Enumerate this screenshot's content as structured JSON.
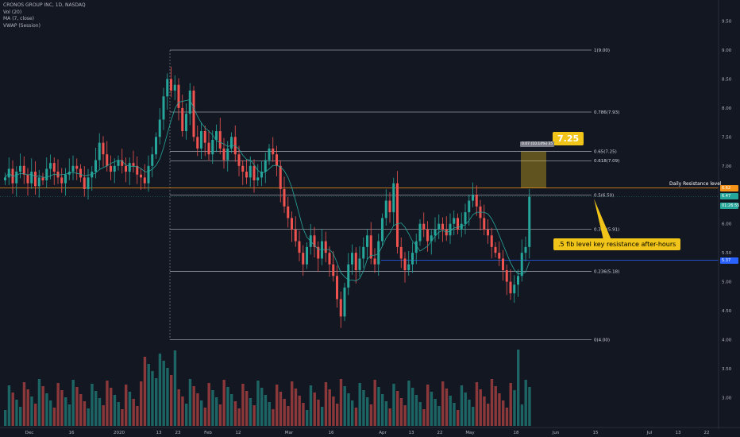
{
  "legend": {
    "symbol": "CRONOS GROUP INC, 1D, NASDAQ",
    "vol": "Vol (20)",
    "ma": "MA (7, close)",
    "vwap": "VWAP (Session)"
  },
  "price_axis": {
    "labels": [
      "9.50",
      "9.00",
      "8.50",
      "8.00",
      "7.50",
      "7.00",
      "6.50",
      "6.00",
      "5.50",
      "5.00",
      "4.50",
      "4.00",
      "3.50",
      "3.00"
    ],
    "values": [
      9.5,
      9.0,
      8.5,
      8.0,
      7.5,
      7.0,
      6.5,
      6.0,
      5.5,
      5.0,
      4.5,
      4.0,
      3.5,
      3.0
    ]
  },
  "time_axis": {
    "labels": [
      "Dec",
      "16",
      "2020",
      "13",
      "23",
      "Feb",
      "12",
      "Mar",
      "16",
      "Apr",
      "13",
      "22",
      "May",
      "18",
      "Jun",
      "15",
      "Jul",
      "13",
      "22"
    ]
  },
  "fib_levels": [
    {
      "label": "1(9.00)",
      "value": 9.0
    },
    {
      "label": "0.786(7.93)",
      "value": 7.93
    },
    {
      "label": "0.65(7.25)",
      "value": 7.25
    },
    {
      "label": "0.618(7.09)",
      "value": 7.09
    },
    {
      "label": "0.5(6.50)",
      "value": 6.5
    },
    {
      "label": "0.382(5.91)",
      "value": 5.91
    },
    {
      "label": "0.236(5.18)",
      "value": 5.18
    },
    {
      "label": "0(4.00)",
      "value": 4.0
    }
  ],
  "resistance": {
    "label": "Daily Resistance level",
    "value": 6.62
  },
  "price_tags": [
    {
      "text": "6.62",
      "value": 6.62,
      "color": "#f7931a"
    },
    {
      "text": "6.47",
      "value": 6.47,
      "color": "#26a69a"
    },
    {
      "text": "01:26:55",
      "value": 6.31,
      "color": "#26a69a"
    },
    {
      "text": "5.37",
      "value": 5.37,
      "color": "#2962ff"
    }
  ],
  "support_line": {
    "value": 5.37
  },
  "annotations": {
    "target_big": "7.25",
    "target_small": "0.07 (10.14%) 35",
    "callout": ".5 fib level key resistance after-hours"
  },
  "colors": {
    "up": "#26a69a",
    "down": "#ef5350",
    "ma": "#26a69a",
    "fib": "#d1d4dc",
    "resistance": "#f7931a",
    "callout": "#f0c419"
  },
  "chart_data": {
    "type": "candlestick",
    "closes": [
      6.8,
      6.95,
      6.7,
      6.9,
      7.0,
      6.85,
      6.7,
      6.9,
      6.65,
      6.8,
      6.75,
      6.95,
      7.05,
      6.9,
      6.8,
      6.7,
      6.85,
      6.9,
      7.0,
      6.95,
      6.8,
      6.6,
      6.8,
      6.9,
      7.1,
      7.4,
      7.2,
      7.0,
      6.9,
      7.0,
      7.1,
      7.0,
      6.9,
      7.05,
      7.0,
      6.85,
      6.8,
      6.7,
      7.0,
      7.2,
      7.5,
      7.8,
      8.2,
      8.5,
      8.3,
      8.4,
      8.0,
      7.6,
      7.9,
      8.3,
      7.5,
      7.3,
      7.6,
      7.4,
      7.2,
      7.45,
      7.6,
      7.3,
      7.1,
      7.3,
      7.5,
      7.2,
      7.0,
      6.9,
      6.8,
      7.0,
      6.75,
      6.8,
      6.9,
      7.1,
      7.3,
      7.2,
      7.0,
      6.6,
      6.3,
      6.1,
      5.9,
      5.7,
      5.5,
      5.3,
      5.6,
      5.8,
      5.6,
      5.4,
      5.7,
      5.5,
      5.3,
      5.1,
      4.7,
      4.4,
      4.9,
      5.3,
      5.5,
      5.2,
      5.4,
      5.6,
      5.8,
      5.4,
      5.3,
      5.7,
      6.1,
      6.4,
      6.2,
      6.7,
      5.6,
      5.4,
      5.2,
      5.3,
      5.5,
      5.7,
      6.0,
      5.9,
      5.7,
      5.8,
      5.9,
      6.0,
      5.9,
      5.8,
      6.0,
      6.1,
      5.9,
      6.0,
      6.2,
      6.4,
      6.5,
      6.3,
      6.1,
      5.9,
      5.8,
      5.6,
      5.5,
      5.4,
      5.2,
      5.0,
      4.8,
      4.95,
      5.1,
      5.5,
      5.6,
      6.47
    ]
  }
}
